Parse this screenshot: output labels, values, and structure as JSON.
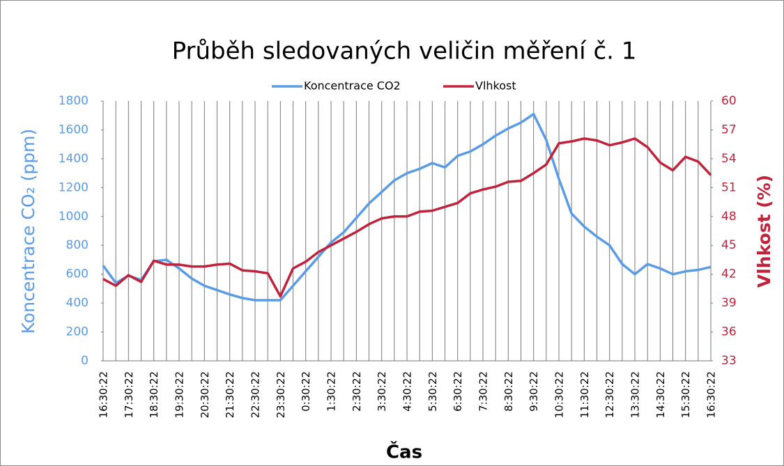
{
  "chart_data": {
    "type": "line",
    "title": "Průběh sledovaných veličin měření č. 1",
    "xlabel": "Čas",
    "ylabel": "Koncentrace CO₂ (ppm)",
    "y2label": "Vlhkost (%)",
    "categories": [
      "16:30:22",
      null,
      "17:30:22",
      null,
      "18:30:22",
      null,
      "19:30:22",
      null,
      "20:30:22",
      null,
      "21:30:22",
      null,
      "22:30:22",
      null,
      "23:30:22",
      null,
      "0:30:22",
      null,
      "1:30:22",
      null,
      "2:30:22",
      null,
      "3:30:22",
      null,
      "4:30:22",
      null,
      "5:30:22",
      null,
      "6:30:22",
      null,
      "7:30:22",
      null,
      "8:30:22",
      null,
      "9:30:22",
      null,
      "10:30:22",
      null,
      "11:30:22",
      null,
      "12:30:22",
      null,
      "13:30:22",
      null,
      "14:30:22",
      null,
      "15:30:22",
      null,
      "16:30:22"
    ],
    "series": [
      {
        "name": "Koncentrace CO2",
        "color": "#5a9be6",
        "axis": "y",
        "values": [
          660,
          540,
          590,
          560,
          690,
          700,
          640,
          570,
          520,
          490,
          460,
          435,
          420,
          420,
          420,
          520,
          620,
          720,
          820,
          890,
          990,
          1090,
          1170,
          1250,
          1300,
          1330,
          1370,
          1340,
          1420,
          1450,
          1500,
          1560,
          1610,
          1650,
          1710,
          1530,
          1260,
          1020,
          930,
          860,
          800,
          670,
          600,
          670,
          640,
          600,
          620,
          630,
          650
        ]
      },
      {
        "name": "Vlhkost",
        "color": "#c0223b",
        "axis": "y2",
        "values": [
          41.5,
          40.8,
          41.9,
          41.2,
          43.4,
          43.0,
          43.0,
          42.8,
          42.8,
          43.0,
          43.1,
          42.4,
          42.3,
          42.1,
          39.7,
          42.6,
          43.3,
          44.3,
          45.0,
          45.7,
          46.4,
          47.2,
          47.8,
          48.0,
          48.0,
          48.5,
          48.6,
          49.0,
          49.4,
          50.4,
          50.8,
          51.1,
          51.6,
          51.7,
          52.5,
          53.4,
          55.6,
          55.8,
          56.1,
          55.9,
          55.4,
          55.7,
          56.1,
          55.2,
          53.6,
          52.8,
          54.2,
          53.7,
          52.3
        ]
      }
    ],
    "ylim": [
      0,
      1800
    ],
    "yticks": [
      0,
      200,
      400,
      600,
      800,
      1000,
      1200,
      1400,
      1600,
      1800
    ],
    "y2lim": [
      33,
      60
    ],
    "y2ticks": [
      33,
      36,
      39,
      42,
      45,
      48,
      51,
      54,
      57,
      60
    ],
    "grid": "x",
    "legend": "top"
  }
}
